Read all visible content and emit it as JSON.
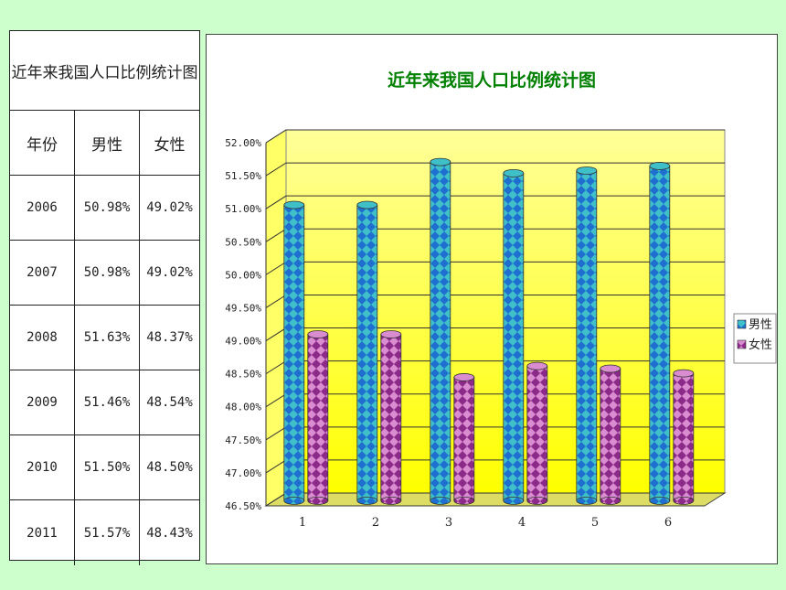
{
  "table": {
    "title": "近年来我国人口比例统计图",
    "headers": [
      "年份",
      "男性",
      "女性"
    ],
    "rows": [
      [
        "2006",
        "50.98%",
        "49.02%"
      ],
      [
        "2007",
        "50.98%",
        "49.02%"
      ],
      [
        "2008",
        "51.63%",
        "48.37%"
      ],
      [
        "2009",
        "51.46%",
        "48.54%"
      ],
      [
        "2010",
        "51.50%",
        "48.50%"
      ],
      [
        "2011",
        "51.57%",
        "48.43%"
      ]
    ]
  },
  "chart_data": {
    "type": "bar",
    "title": "近年来我国人口比例统计图",
    "categories": [
      "1",
      "2",
      "3",
      "4",
      "5",
      "6"
    ],
    "series": [
      {
        "name": "男性",
        "values": [
          50.98,
          50.98,
          51.63,
          51.46,
          51.5,
          51.57
        ],
        "color": "#1e6fd0"
      },
      {
        "name": "女性",
        "values": [
          49.02,
          49.02,
          48.37,
          48.54,
          48.5,
          48.43
        ],
        "color": "#9b2d8f"
      }
    ],
    "ylim": [
      46.5,
      52.0
    ],
    "yticks": [
      "46.50%",
      "47.00%",
      "47.50%",
      "48.00%",
      "48.50%",
      "49.00%",
      "49.50%",
      "50.00%",
      "50.50%",
      "51.00%",
      "51.50%",
      "52.00%"
    ],
    "xlabel": "",
    "ylabel": "",
    "grid": true,
    "legend": "right",
    "colors": {
      "background": "#ccffcc",
      "plot_fill": "#ffff33",
      "title": "#008000"
    }
  }
}
